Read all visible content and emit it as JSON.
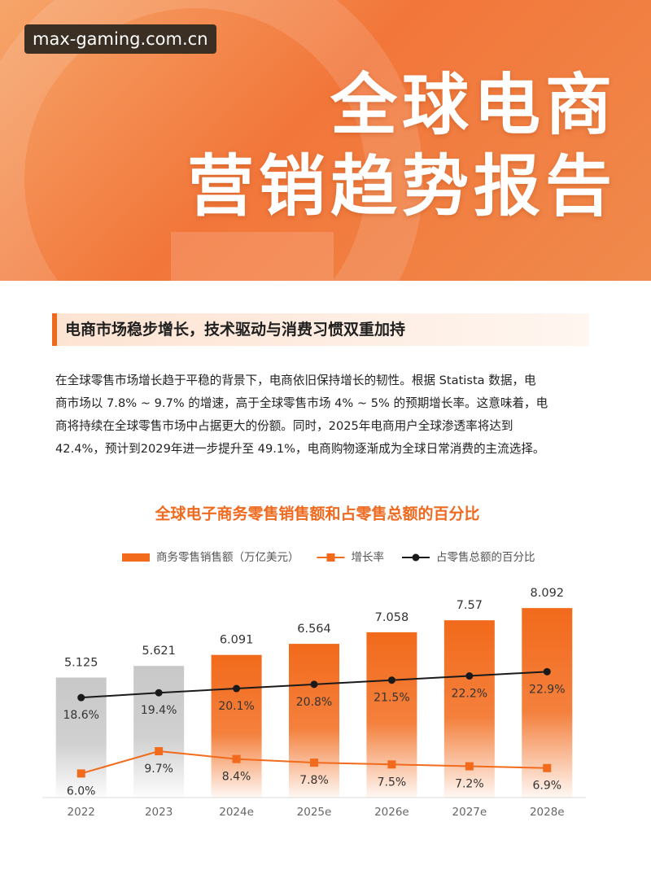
{
  "header": {
    "badge": "max-gaming.com.cn",
    "title_lines": [
      "全球电商",
      "营销趋势报告"
    ]
  },
  "section": {
    "heading": "电商市场稳步增长，技术驱动与消费习惯双重加持",
    "paragraph_lines": [
      "在全球零售市场增长趋于平稳的背景下，电商依旧保持增长的韧性。根据 Statista 数据，电",
      "商市场以 7.8% ~ 9.7% 的增速，高于全球零售市场 4% ~ 5% 的预期增长率。这意味着，电",
      "商将持续在全球零售市场中占据更大的份额。同时，2025年电商用户全球渗透率将达到",
      "42.4%，预计到2029年进一步提升至 49.1%，电商购物逐渐成为全球日常消费的主流选择。"
    ]
  },
  "chart_data": {
    "type": "bar",
    "title": "全球电子商务零售销售额和占零售总额的百分比",
    "categories": [
      "2022",
      "2023",
      "2024e",
      "2025e",
      "2026e",
      "2027e",
      "2028e"
    ],
    "ylim": [
      0,
      9
    ],
    "y2lim": [
      2,
      37
    ],
    "series": [
      {
        "name": "商务零售销售额（万亿美元）",
        "type": "bar",
        "color": "#f26a1b",
        "colors": [
          "#c8c8c8",
          "#c8c8c8",
          "#f26a1b",
          "#f26a1b",
          "#f26a1b",
          "#f26a1b",
          "#f26a1b"
        ],
        "values": [
          5.125,
          5.621,
          6.091,
          6.564,
          7.058,
          7.57,
          8.092
        ]
      },
      {
        "name": "增长率",
        "type": "line",
        "marker": "square",
        "color": "#f26a1b",
        "axis": "y2",
        "values": [
          6.0,
          9.7,
          8.4,
          7.8,
          7.5,
          7.2,
          6.9
        ],
        "value_labels": [
          "6.0%",
          "9.7%",
          "8.4%",
          "7.8%",
          "7.5%",
          "7.2%",
          "6.9%"
        ]
      },
      {
        "name": "占零售总额的百分比",
        "type": "line",
        "marker": "circle",
        "color": "#1a1a1a",
        "axis": "y2",
        "values": [
          18.6,
          19.4,
          20.1,
          20.8,
          21.5,
          22.2,
          22.9
        ],
        "value_labels": [
          "18.6%",
          "19.4%",
          "20.1%",
          "20.8%",
          "21.5%",
          "22.2%",
          "22.9%"
        ]
      }
    ]
  }
}
